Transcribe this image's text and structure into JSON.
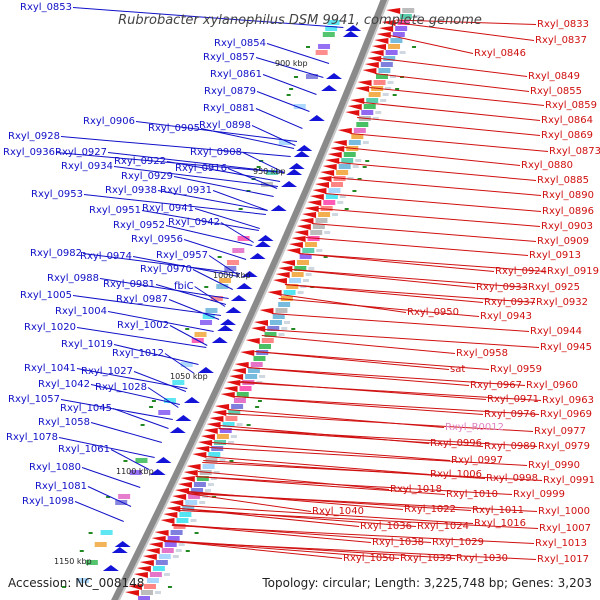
{
  "title": "Rubrobacter xylanophilus DSM 9941, complete genome",
  "footer": {
    "accession": "Accession: NC_008148",
    "summary": "Topology: circular; Length: 3,225,748 bp; Genes: 3,203"
  },
  "colors": {
    "left_labels": "#1010c8",
    "right_labels": "#d01010",
    "rna_label": "#e080c0",
    "backbone": "#888888"
  },
  "ticks": [
    "900 kbp",
    "950 kbp",
    "1000 kbp",
    "1050 kbp",
    "1100 kbp",
    "1150 kbp"
  ],
  "left_labels": [
    "Rxyl_0853",
    "Rxyl_0854",
    "Rxyl_0857",
    "Rxyl_0861",
    "Rxyl_0879",
    "Rxyl_0881",
    "Rxyl_0906",
    "Rxyl_0905",
    "Rxyl_0898",
    "Rxyl_0928",
    "Rxyl_0936",
    "Rxyl_0927",
    "Rxyl_0908",
    "Rxyl_0934",
    "Rxyl_0922",
    "Rxyl_0916",
    "Rxyl_0929",
    "Rxyl_0938",
    "Rxyl_0931",
    "Rxyl_0953",
    "Rxyl_0941",
    "Rxyl_0951",
    "Rxyl_0942",
    "Rxyl_0952",
    "Rxyl_0956",
    "Rxyl_0982",
    "Rxyl_0974",
    "Rxyl_0957",
    "Rxyl_0970",
    "Rxyl_0988",
    "Rxyl_0981",
    "fbiC",
    "Rxyl_1005",
    "Rxyl_0987",
    "Rxyl_1004",
    "Rxyl_1020",
    "Rxyl_1002",
    "Rxyl_1019",
    "Rxyl_1012",
    "Rxyl_1041",
    "Rxyl_1027",
    "Rxyl_1042",
    "Rxyl_1028",
    "Rxyl_1057",
    "Rxyl_1045",
    "Rxyl_1058",
    "Rxyl_1078",
    "Rxyl_1061",
    "Rxyl_1080",
    "Rxyl_1081",
    "Rxyl_1098"
  ],
  "right_labels": [
    "Rxyl_0833",
    "Rxyl_0837",
    "Rxyl_0846",
    "Rxyl_0849",
    "Rxyl_0855",
    "Rxyl_0859",
    "Rxyl_0864",
    "Rxyl_0869",
    "Rxyl_0873",
    "Rxyl_0880",
    "Rxyl_0885",
    "Rxyl_0890",
    "Rxyl_0896",
    "Rxyl_0903",
    "Rxyl_0909",
    "Rxyl_0913",
    "Rxyl_0924",
    "Rxyl_0919",
    "Rxyl_0933",
    "Rxyl_0925",
    "Rxyl_0937",
    "Rxyl_0932",
    "Rxyl_0950",
    "Rxyl_0943",
    "Rxyl_0944",
    "Rxyl_0945",
    "Rxyl_0958",
    "sat",
    "Rxyl_0959",
    "Rxyl_0967",
    "Rxyl_0960",
    "Rxyl_0971",
    "Rxyl_0963",
    "Rxyl_0976",
    "Rxyl_0969",
    "Rxyl_0977",
    "Rxyl_0996",
    "Rxyl_0989",
    "Rxyl_0979",
    "Rxyl_0997",
    "Rxyl_0990",
    "Rxyl_1006",
    "Rxyl_0998",
    "Rxyl_0991",
    "Rxyl_1018",
    "Rxyl_1010",
    "Rxyl_0999",
    "Rxyl_1022",
    "Rxyl_1011",
    "Rxyl_1000",
    "Rxyl_1040",
    "Rxyl_1016",
    "Rxyl_1007",
    "Rxyl_1036",
    "Rxyl_1024",
    "Rxyl_1013",
    "Rxyl_1038",
    "Rxyl_1029",
    "Rxyl_1050",
    "Rxyl_1039",
    "Rxyl_1030",
    "Rxyl_1017"
  ],
  "rna_label": "Rxyl_R0012"
}
